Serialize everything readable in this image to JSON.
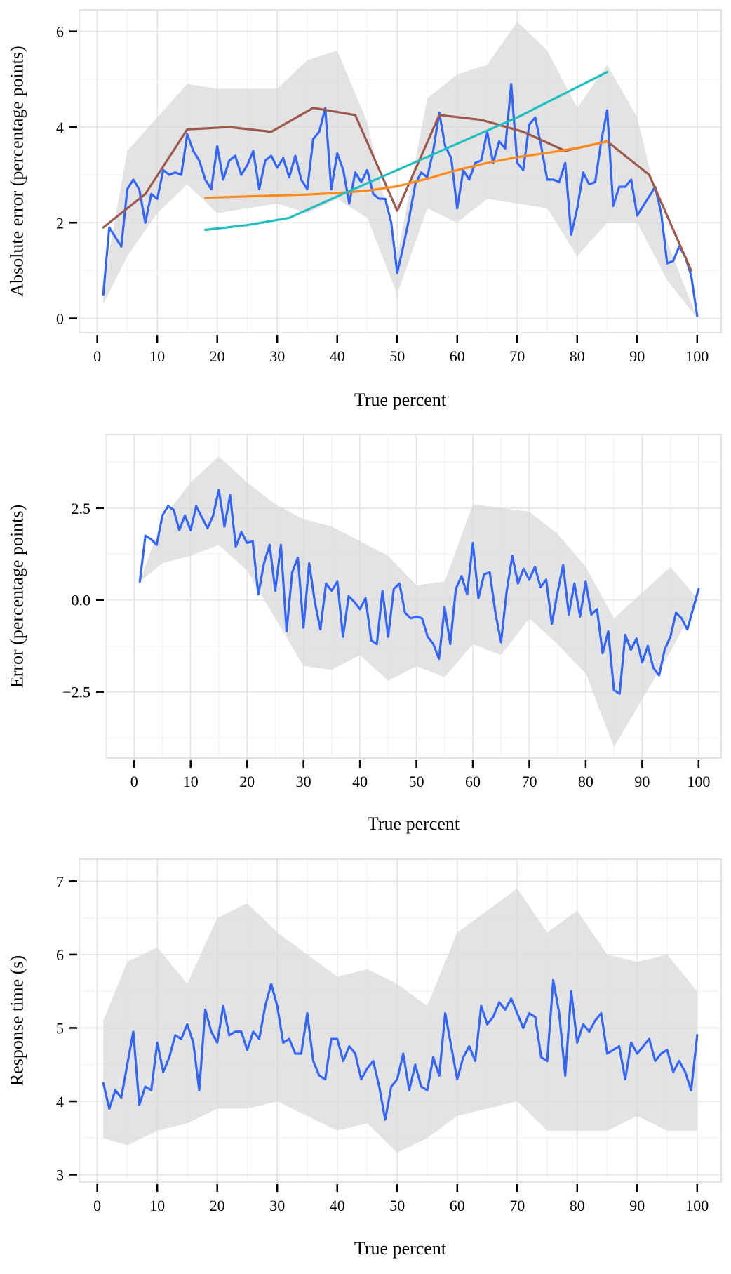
{
  "chart_data": [
    {
      "type": "line",
      "xlabel": "True percent",
      "ylabel": "Absolute error (percentage points)",
      "xlim": [
        -3,
        104
      ],
      "ylim": [
        -0.3,
        6.45
      ],
      "xticks": [
        0,
        10,
        20,
        30,
        40,
        50,
        60,
        70,
        80,
        90,
        100
      ],
      "yticks": [
        0,
        2,
        4,
        6
      ],
      "ytick_labels": [
        "0",
        "2",
        "4",
        "6"
      ],
      "grid": true,
      "ribbon": {
        "color": "#d9d9d9",
        "x": [
          1,
          5,
          10,
          15,
          20,
          25,
          30,
          35,
          40,
          45,
          50,
          55,
          60,
          65,
          70,
          75,
          80,
          85,
          90,
          95,
          100
        ],
        "lower": [
          0.3,
          1.3,
          2.2,
          2.8,
          2.2,
          2.3,
          2.4,
          2.2,
          2.5,
          2.1,
          0.5,
          2.3,
          2.0,
          2.5,
          2.4,
          2.3,
          1.3,
          2.0,
          2.0,
          0.8,
          0
        ],
        "upper": [
          0.7,
          3.5,
          4.2,
          4.9,
          4.8,
          4.8,
          4.8,
          5.4,
          5.6,
          4.1,
          1.3,
          4.6,
          5.1,
          5.3,
          6.2,
          5.6,
          4.4,
          5.3,
          4.2,
          1.6,
          0
        ]
      },
      "series": [
        {
          "color": "#3366ff",
          "x": [
            1,
            2,
            3,
            4,
            5,
            6,
            7,
            8,
            9,
            10,
            11,
            12,
            13,
            14,
            15,
            16,
            17,
            18,
            19,
            20,
            21,
            22,
            23,
            24,
            25,
            26,
            27,
            28,
            29,
            30,
            31,
            32,
            33,
            34,
            35,
            36,
            37,
            38,
            39,
            40,
            41,
            42,
            43,
            44,
            45,
            46,
            47,
            48,
            49,
            50,
            51,
            52,
            53,
            54,
            55,
            56,
            57,
            58,
            59,
            60,
            61,
            62,
            63,
            64,
            65,
            66,
            67,
            68,
            69,
            70,
            71,
            72,
            73,
            74,
            75,
            76,
            77,
            78,
            79,
            80,
            81,
            82,
            83,
            84,
            85,
            86,
            87,
            88,
            89,
            90,
            91,
            92,
            93,
            94,
            95,
            96,
            97,
            98,
            99,
            100
          ],
          "y": [
            0.5,
            1.9,
            1.7,
            1.5,
            2.7,
            2.9,
            2.7,
            2.0,
            2.6,
            2.5,
            3.1,
            3.0,
            3.05,
            3.0,
            3.85,
            3.5,
            3.3,
            2.9,
            2.7,
            3.6,
            2.9,
            3.3,
            3.4,
            3.0,
            3.2,
            3.5,
            2.7,
            3.3,
            3.4,
            3.15,
            3.35,
            2.95,
            3.4,
            2.9,
            2.7,
            3.75,
            3.9,
            4.4,
            2.7,
            3.45,
            3.1,
            2.4,
            3.05,
            2.85,
            3.1,
            2.6,
            2.5,
            2.5,
            2.0,
            0.95,
            1.5,
            2.1,
            2.8,
            3.05,
            2.95,
            3.5,
            4.3,
            3.6,
            3.35,
            2.3,
            3.1,
            2.9,
            3.25,
            3.3,
            3.9,
            3.25,
            3.7,
            3.55,
            4.9,
            3.25,
            3.1,
            4.05,
            4.2,
            3.6,
            2.9,
            2.9,
            2.85,
            3.25,
            1.75,
            2.3,
            3.05,
            2.8,
            2.85,
            3.7,
            4.35,
            2.35,
            2.75,
            2.75,
            2.9,
            2.15,
            2.35,
            2.55,
            2.75,
            2.2,
            1.15,
            1.2,
            1.5,
            1.3,
            0.9,
            0.05
          ]
        },
        {
          "color": "#9b5a4d",
          "x": [
            1,
            8,
            15,
            22,
            29,
            36,
            43,
            50,
            57,
            64,
            71,
            78,
            85,
            92,
            99
          ],
          "y": [
            1.9,
            2.6,
            3.95,
            4.0,
            3.9,
            4.4,
            4.25,
            2.25,
            4.25,
            4.15,
            3.9,
            3.5,
            3.7,
            3.0,
            1.0
          ]
        },
        {
          "color": "#ff8a1c",
          "x": [
            18,
            25,
            30,
            35,
            40,
            45,
            50,
            55,
            60,
            65,
            70,
            75,
            80,
            85
          ],
          "y": [
            2.52,
            2.55,
            2.57,
            2.59,
            2.62,
            2.67,
            2.76,
            2.92,
            3.1,
            3.25,
            3.37,
            3.46,
            3.56,
            3.7
          ]
        },
        {
          "color": "#1fbfbf",
          "x": [
            18,
            25,
            32,
            40,
            50,
            60,
            70,
            85
          ],
          "y": [
            1.85,
            1.95,
            2.1,
            2.55,
            3.1,
            3.65,
            4.2,
            5.15
          ]
        }
      ]
    },
    {
      "type": "line",
      "xlabel": "True percent",
      "ylabel": "Error (percentage points)",
      "xlim": [
        -5,
        104
      ],
      "ylim": [
        -4.3,
        4.5
      ],
      "xticks": [
        0,
        10,
        20,
        30,
        40,
        50,
        60,
        70,
        80,
        90,
        100
      ],
      "yticks": [
        -2.5,
        0,
        2.5
      ],
      "ytick_labels": [
        "−2.5",
        "0.0",
        "2.5"
      ],
      "grid": true,
      "ribbon": {
        "color": "#d9d9d9",
        "x": [
          1,
          5,
          10,
          15,
          20,
          25,
          30,
          35,
          40,
          45,
          50,
          55,
          60,
          65,
          70,
          75,
          80,
          85,
          90,
          95,
          100
        ],
        "lower": [
          0.5,
          1.0,
          1.2,
          1.5,
          0.8,
          -0.5,
          -1.8,
          -1.9,
          -1.5,
          -2.2,
          -1.8,
          -2.1,
          -1.2,
          -1.5,
          -0.5,
          -1.2,
          -2.0,
          -4.0,
          -2.7,
          -1.4,
          0
        ],
        "upper": [
          0.5,
          2.2,
          3.2,
          3.9,
          3.2,
          2.6,
          2.2,
          2.0,
          1.6,
          1.2,
          0.4,
          0.5,
          2.6,
          2.5,
          2.4,
          1.8,
          0.9,
          -0.5,
          0.2,
          0.9,
          0
        ]
      },
      "series": [
        {
          "color": "#3366ff",
          "x": [
            1,
            2,
            3,
            4,
            5,
            6,
            7,
            8,
            9,
            10,
            11,
            12,
            13,
            14,
            15,
            16,
            17,
            18,
            19,
            20,
            21,
            22,
            23,
            24,
            25,
            26,
            27,
            28,
            29,
            30,
            31,
            32,
            33,
            34,
            35,
            36,
            37,
            38,
            39,
            40,
            41,
            42,
            43,
            44,
            45,
            46,
            47,
            48,
            49,
            50,
            51,
            52,
            53,
            54,
            55,
            56,
            57,
            58,
            59,
            60,
            61,
            62,
            63,
            64,
            65,
            66,
            67,
            68,
            69,
            70,
            71,
            72,
            73,
            74,
            75,
            76,
            77,
            78,
            79,
            80,
            81,
            82,
            83,
            84,
            85,
            86,
            87,
            88,
            89,
            90,
            91,
            92,
            93,
            94,
            95,
            96,
            97,
            98,
            99,
            100
          ],
          "y": [
            0.5,
            1.75,
            1.65,
            1.5,
            2.3,
            2.55,
            2.45,
            1.9,
            2.3,
            1.9,
            2.55,
            2.25,
            1.95,
            2.3,
            3.0,
            2.0,
            2.85,
            1.45,
            1.85,
            1.55,
            1.6,
            0.15,
            1.0,
            1.5,
            0.25,
            1.5,
            -0.85,
            0.75,
            1.15,
            -0.75,
            1.0,
            -0.05,
            -0.8,
            0.45,
            0.25,
            0.5,
            -1.0,
            0.1,
            -0.05,
            -0.25,
            0.05,
            -1.1,
            -1.2,
            0.25,
            -1.0,
            0.3,
            0.45,
            -0.35,
            -0.5,
            -0.45,
            -0.5,
            -1.0,
            -1.2,
            -1.6,
            -0.2,
            -1.2,
            0.3,
            0.65,
            0.15,
            1.55,
            0.05,
            0.7,
            0.75,
            -0.35,
            -1.15,
            0.25,
            1.2,
            0.45,
            0.85,
            0.55,
            0.9,
            0.35,
            0.55,
            -0.65,
            0.2,
            0.95,
            -0.4,
            0.45,
            -0.45,
            0.5,
            -0.4,
            -0.25,
            -1.45,
            -0.85,
            -2.45,
            -2.55,
            -0.95,
            -1.35,
            -1.05,
            -1.7,
            -1.25,
            -1.85,
            -2.05,
            -1.35,
            -1.0,
            -0.35,
            -0.5,
            -0.8,
            -0.25,
            0.3
          ]
        }
      ]
    },
    {
      "type": "line",
      "xlabel": "True percent",
      "ylabel": "Response time (s)",
      "xlim": [
        -3,
        104
      ],
      "ylim": [
        2.9,
        7.3
      ],
      "xticks": [
        0,
        10,
        20,
        30,
        40,
        50,
        60,
        70,
        80,
        90,
        100
      ],
      "yticks": [
        3,
        4,
        5,
        6,
        7
      ],
      "ytick_labels": [
        "3",
        "4",
        "5",
        "6",
        "7"
      ],
      "grid": true,
      "ribbon": {
        "color": "#d9d9d9",
        "x": [
          1,
          5,
          10,
          15,
          20,
          25,
          30,
          35,
          40,
          45,
          50,
          55,
          60,
          65,
          70,
          75,
          80,
          85,
          90,
          95,
          100
        ],
        "lower": [
          3.5,
          3.4,
          3.6,
          3.7,
          3.9,
          3.9,
          4.0,
          3.8,
          3.6,
          3.7,
          3.3,
          3.5,
          3.8,
          3.9,
          4.0,
          3.6,
          3.6,
          3.6,
          3.8,
          3.6,
          3.6
        ],
        "upper": [
          5.1,
          5.9,
          6.1,
          5.6,
          6.5,
          6.7,
          6.3,
          6.0,
          5.7,
          5.8,
          5.6,
          5.3,
          6.3,
          6.6,
          6.9,
          6.3,
          6.6,
          6.0,
          5.9,
          6.0,
          5.5
        ]
      },
      "series": [
        {
          "color": "#3366ff",
          "x": [
            1,
            2,
            3,
            4,
            5,
            6,
            7,
            8,
            9,
            10,
            11,
            12,
            13,
            14,
            15,
            16,
            17,
            18,
            19,
            20,
            21,
            22,
            23,
            24,
            25,
            26,
            27,
            28,
            29,
            30,
            31,
            32,
            33,
            34,
            35,
            36,
            37,
            38,
            39,
            40,
            41,
            42,
            43,
            44,
            45,
            46,
            47,
            48,
            49,
            50,
            51,
            52,
            53,
            54,
            55,
            56,
            57,
            58,
            59,
            60,
            61,
            62,
            63,
            64,
            65,
            66,
            67,
            68,
            69,
            70,
            71,
            72,
            73,
            74,
            75,
            76,
            77,
            78,
            79,
            80,
            81,
            82,
            83,
            84,
            85,
            86,
            87,
            88,
            89,
            90,
            91,
            92,
            93,
            94,
            95,
            96,
            97,
            98,
            99,
            100
          ],
          "y": [
            4.25,
            3.9,
            4.15,
            4.05,
            4.5,
            4.95,
            3.95,
            4.2,
            4.15,
            4.8,
            4.4,
            4.6,
            4.9,
            4.85,
            5.05,
            4.8,
            4.15,
            5.25,
            4.95,
            4.8,
            5.3,
            4.9,
            4.95,
            4.95,
            4.7,
            4.95,
            4.85,
            5.3,
            5.6,
            5.3,
            4.8,
            4.85,
            4.65,
            4.65,
            5.2,
            4.55,
            4.35,
            4.3,
            4.85,
            4.85,
            4.55,
            4.75,
            4.65,
            4.3,
            4.45,
            4.55,
            4.2,
            3.75,
            4.2,
            4.3,
            4.65,
            4.15,
            4.5,
            4.2,
            4.15,
            4.6,
            4.35,
            5.2,
            4.75,
            4.3,
            4.6,
            4.75,
            4.55,
            5.3,
            5.05,
            5.15,
            5.35,
            5.25,
            5.4,
            5.2,
            5.0,
            5.2,
            5.15,
            4.6,
            4.55,
            5.65,
            5.2,
            4.35,
            5.5,
            4.8,
            5.05,
            4.95,
            5.1,
            5.2,
            4.65,
            4.7,
            4.75,
            4.3,
            4.8,
            4.65,
            4.75,
            4.85,
            4.55,
            4.65,
            4.7,
            4.4,
            4.55,
            4.4,
            4.15,
            4.9
          ]
        }
      ]
    }
  ]
}
